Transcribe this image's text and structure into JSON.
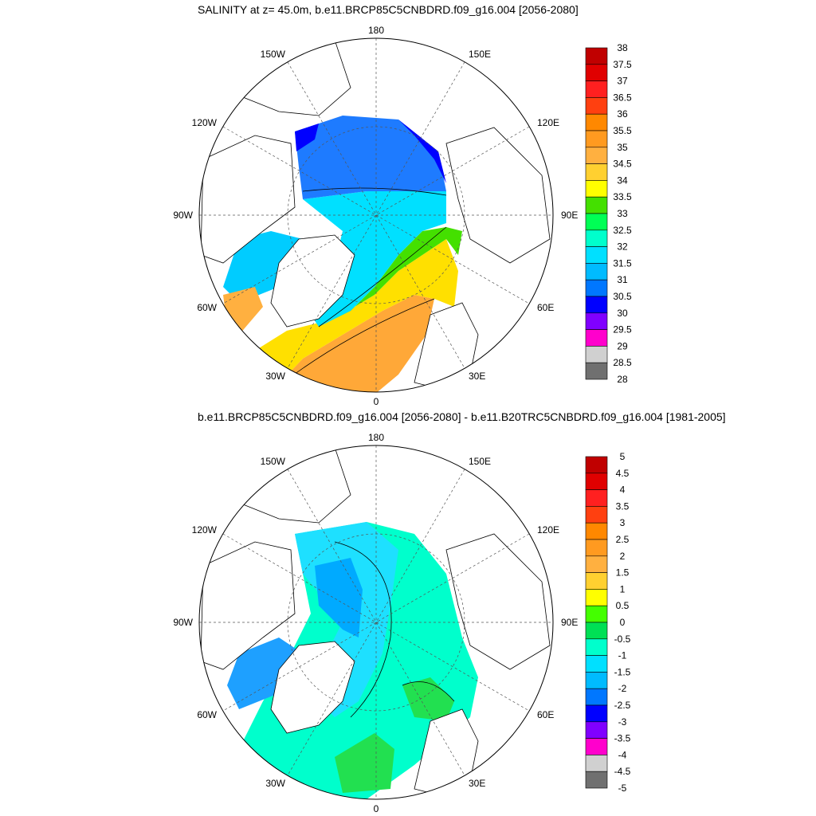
{
  "panel1": {
    "title": "SALINITY at z=  45.0m, b.e11.BRCP85C5CNBDRD.f09_g16.004 [2056-2080]",
    "lon_labels": {
      "top": "180",
      "bottom": "0",
      "left": "90W",
      "right": "90E",
      "ul": "150W",
      "ur": "150E",
      "ul2": "120W",
      "ur2": "120E",
      "ll": "60W",
      "lr": "60E",
      "ll2": "30W",
      "lr2": "30E"
    },
    "colorbar": {
      "labels": [
        "38",
        "37.5",
        "37",
        "36.5",
        "36",
        "35.5",
        "35",
        "34.5",
        "34",
        "33.5",
        "33",
        "32.5",
        "32",
        "31.5",
        "31",
        "30.5",
        "30",
        "29.5",
        "29",
        "28.5",
        "28"
      ],
      "colors": [
        "#c00000",
        "#e00000",
        "#ff2020",
        "#ff4010",
        "#ff8800",
        "#ff9a20",
        "#ffb040",
        "#ffd030",
        "#ffff00",
        "#44e000",
        "#00ff55",
        "#00ffcc",
        "#00e0ff",
        "#00bbff",
        "#0077ff",
        "#0000ff",
        "#8000ff",
        "#ff00cc",
        "#d0d0d0",
        "#707070"
      ]
    }
  },
  "panel2": {
    "title": "b.e11.BRCP85C5CNBDRD.f09_g16.004 [2056-2080] - b.e11.B20TRC5CNBDRD.f09_g16.004 [1981-2005]",
    "lon_labels": {
      "top": "180",
      "bottom": "0",
      "left": "90W",
      "right": "90E",
      "ul": "150W",
      "ur": "150E",
      "ul2": "120W",
      "ur2": "120E",
      "ll": "60W",
      "lr": "60E",
      "ll2": "30W",
      "lr2": "30E"
    },
    "colorbar": {
      "labels": [
        "5",
        "4.5",
        "4",
        "3.5",
        "3",
        "2.5",
        "2",
        "1.5",
        "1",
        "0.5",
        "0",
        "-0.5",
        "-1",
        "-1.5",
        "-2",
        "-2.5",
        "-3",
        "-3.5",
        "-4",
        "-4.5",
        "-5"
      ],
      "colors": [
        "#c00000",
        "#e00000",
        "#ff2020",
        "#ff4010",
        "#ff8800",
        "#ff9a20",
        "#ffb040",
        "#ffd030",
        "#ffff00",
        "#44ff00",
        "#00e055",
        "#00ffcc",
        "#00e0ff",
        "#00bbff",
        "#0077ff",
        "#0000ff",
        "#8000ff",
        "#ff00cc",
        "#d0d0d0",
        "#707070"
      ]
    }
  }
}
